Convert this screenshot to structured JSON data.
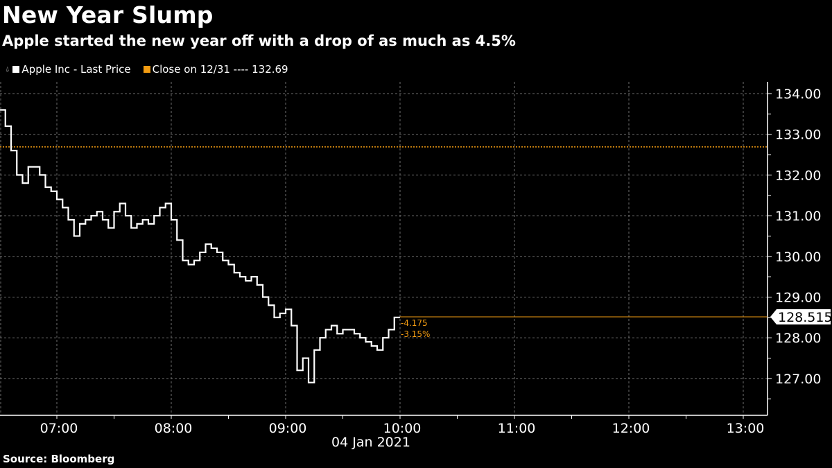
{
  "header": {
    "title": "New Year Slump",
    "subtitle": "Apple started the new year off with a drop of as much as 4.5%"
  },
  "legend": {
    "items": [
      {
        "label": "Apple Inc - Last Price",
        "color": "#ffffff"
      },
      {
        "label": "Close on 12/31 ---- 132.69",
        "color": "#f39c12"
      }
    ]
  },
  "footer": {
    "source": "Source: Bloomberg"
  },
  "annotations": {
    "last_price": "128.515",
    "change_abs": "-4.175",
    "change_pct": "-3.15%"
  },
  "colors": {
    "background": "#000000",
    "line": "#ffffff",
    "reference": "#f39c12",
    "grid": "#777777"
  },
  "chart_data": {
    "type": "line",
    "title": "New Year Slump",
    "subtitle": "Apple started the new year off with a drop of as much as 4.5%",
    "xlabel": "04 Jan 2021",
    "ylabel": "",
    "x_ticks": [
      "07:00",
      "08:00",
      "09:00",
      "10:00",
      "11:00",
      "12:00",
      "13:00"
    ],
    "y_ticks": [
      "127.00",
      "128.00",
      "129.00",
      "130.00",
      "131.00",
      "132.00",
      "133.00",
      "134.00"
    ],
    "ylim": [
      126.2,
      134.3
    ],
    "xlim": [
      "06:30",
      "13:15"
    ],
    "grid": true,
    "legend_position": "top-left",
    "reference_line": {
      "label": "Close on 12/31",
      "value": 132.69
    },
    "last_value": 128.515,
    "change": -4.175,
    "change_pct": -3.15,
    "series": [
      {
        "name": "Apple Inc - Last Price",
        "x": [
          "06:30",
          "06:33",
          "06:36",
          "06:39",
          "06:42",
          "06:45",
          "06:48",
          "06:51",
          "06:54",
          "06:57",
          "07:00",
          "07:03",
          "07:06",
          "07:09",
          "07:12",
          "07:15",
          "07:18",
          "07:21",
          "07:24",
          "07:27",
          "07:30",
          "07:33",
          "07:36",
          "07:39",
          "07:42",
          "07:45",
          "07:48",
          "07:51",
          "07:54",
          "07:57",
          "08:00",
          "08:03",
          "08:06",
          "08:09",
          "08:12",
          "08:15",
          "08:18",
          "08:21",
          "08:24",
          "08:27",
          "08:30",
          "08:33",
          "08:36",
          "08:39",
          "08:42",
          "08:45",
          "08:48",
          "08:51",
          "08:54",
          "08:57",
          "09:00",
          "09:03",
          "09:06",
          "09:09",
          "09:12",
          "09:15",
          "09:18",
          "09:21",
          "09:24",
          "09:27",
          "09:30",
          "09:33",
          "09:36",
          "09:39",
          "09:42",
          "09:45",
          "09:48",
          "09:51",
          "09:54",
          "09:57",
          "10:00"
        ],
        "values": [
          133.6,
          133.2,
          132.6,
          132.0,
          131.8,
          132.2,
          132.2,
          132.0,
          131.7,
          131.6,
          131.4,
          131.2,
          130.9,
          130.5,
          130.8,
          130.9,
          131.0,
          131.1,
          130.9,
          130.7,
          131.1,
          131.3,
          131.0,
          130.7,
          130.8,
          130.9,
          130.8,
          131.0,
          131.2,
          131.3,
          130.9,
          130.4,
          129.9,
          129.8,
          129.9,
          130.1,
          130.3,
          130.2,
          130.1,
          129.9,
          129.8,
          129.6,
          129.5,
          129.4,
          129.5,
          129.3,
          129.0,
          128.8,
          128.5,
          128.6,
          128.7,
          128.3,
          127.2,
          127.5,
          126.9,
          127.7,
          128.0,
          128.2,
          128.3,
          128.1,
          128.2,
          128.2,
          128.1,
          128.0,
          127.9,
          127.8,
          127.7,
          128.0,
          128.2,
          128.5,
          128.5
        ]
      }
    ]
  }
}
